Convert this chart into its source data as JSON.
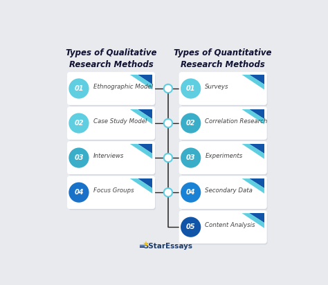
{
  "title_left": "Types of Qualitative\nResearch Methods",
  "title_right": "Types of Quantitative\nResearch Methods",
  "left_items": [
    {
      "num": "01",
      "label": "Ethnographic Model"
    },
    {
      "num": "02",
      "label": "Case Study Model"
    },
    {
      "num": "03",
      "label": "Interviews"
    },
    {
      "num": "04",
      "label": "Focus Groups"
    }
  ],
  "right_items": [
    {
      "num": "01",
      "label": "Surveys"
    },
    {
      "num": "02",
      "label": "Correlation Research"
    },
    {
      "num": "03",
      "label": "Experiments"
    },
    {
      "num": "04",
      "label": "Secondary Data"
    },
    {
      "num": "05",
      "label": "Content Analysis"
    }
  ],
  "bg_color": "#e8eaee",
  "card_color": "#ffffff",
  "card_shadow_color": "#c8ccd4",
  "circle_colors_left": [
    "#5ecee0",
    "#5ecee0",
    "#3aaec8",
    "#1a72c8"
  ],
  "circle_colors_right": [
    "#5ecee0",
    "#3aaec8",
    "#3aaec8",
    "#1a82d4",
    "#1055a8"
  ],
  "connector_line_color": "#222222",
  "mid_circle_fill": "#ffffff",
  "mid_circle_edge": "#5ecee0",
  "stripe_dark": "#1055a8",
  "stripe_light": "#5ecee0",
  "footer_text_color": "#1a3a6b",
  "title_color": "#111133",
  "label_color": "#444444",
  "num_color": "#ffffff"
}
